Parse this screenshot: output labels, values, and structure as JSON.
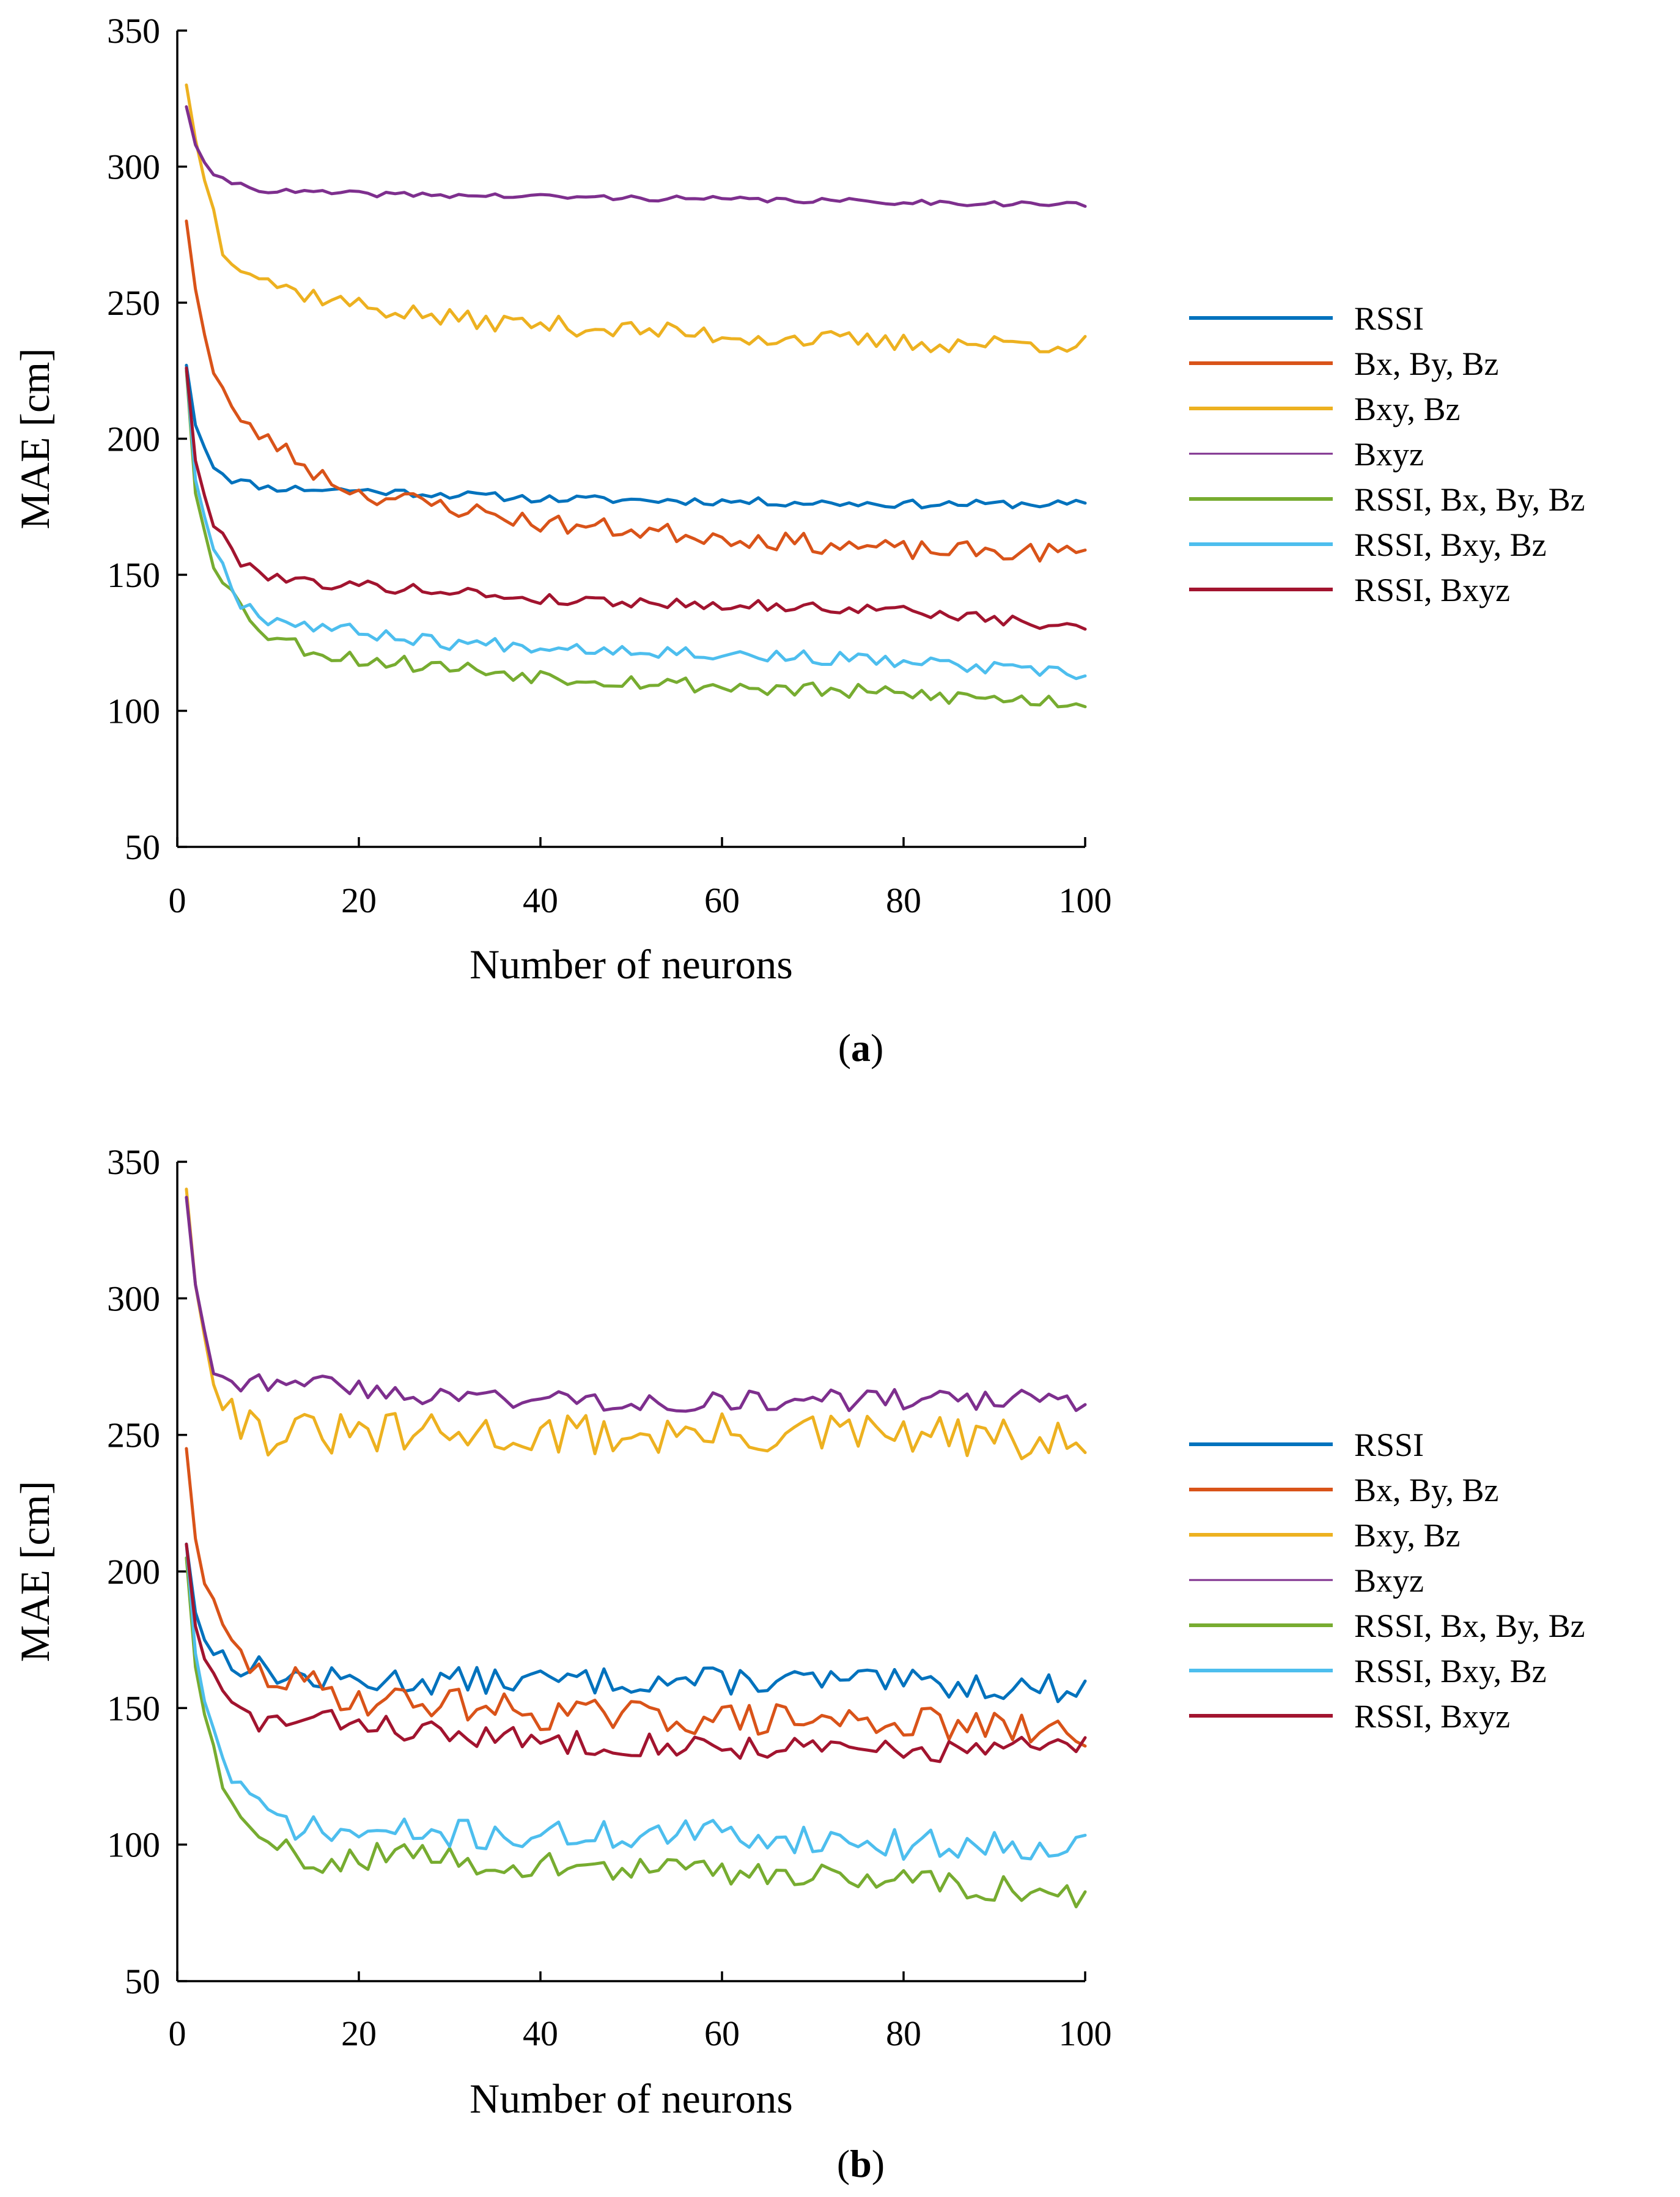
{
  "chart_data": [
    {
      "type": "line",
      "panel": "a",
      "caption_letter": "a",
      "xlabel": "Number of neurons",
      "ylabel": "MAE [cm]",
      "xlim": [
        0,
        100
      ],
      "ylim": [
        50,
        350
      ],
      "xticks": [
        0,
        20,
        40,
        60,
        80,
        100
      ],
      "yticks": [
        50,
        100,
        150,
        200,
        250,
        300,
        350
      ],
      "legend_position": "right",
      "series": [
        {
          "name": "RSSI",
          "color": "#0072BD",
          "anchors": [
            [
              1,
              227
            ],
            [
              2,
              205
            ],
            [
              4,
              190
            ],
            [
              6,
              185
            ],
            [
              10,
              182
            ],
            [
              20,
              181
            ],
            [
              40,
              178
            ],
            [
              60,
              177
            ],
            [
              80,
              176
            ],
            [
              100,
              176
            ]
          ],
          "noise": 1.5,
          "seed": 11
        },
        {
          "name": "Bx, By, Bz",
          "color": "#D95319",
          "anchors": [
            [
              1,
              280
            ],
            [
              2,
              255
            ],
            [
              4,
              225
            ],
            [
              7,
              205
            ],
            [
              10,
              200
            ],
            [
              15,
              188
            ],
            [
              20,
              180
            ],
            [
              30,
              175
            ],
            [
              40,
              169
            ],
            [
              60,
              164
            ],
            [
              80,
              159
            ],
            [
              100,
              158
            ]
          ],
          "noise": 3.5,
          "seed": 23
        },
        {
          "name": "Bxy, Bz",
          "color": "#EDB120",
          "anchors": [
            [
              1,
              330
            ],
            [
              2,
              310
            ],
            [
              5,
              270
            ],
            [
              8,
              262
            ],
            [
              12,
              255
            ],
            [
              20,
              249
            ],
            [
              30,
              244
            ],
            [
              40,
              242
            ],
            [
              60,
              238
            ],
            [
              80,
              235
            ],
            [
              100,
              235
            ]
          ],
          "noise": 3.5,
          "seed": 37
        },
        {
          "name": "Bxyz",
          "color": "#7E2F8E",
          "anchors": [
            [
              1,
              322
            ],
            [
              2,
              308
            ],
            [
              4,
              296
            ],
            [
              10,
              291
            ],
            [
              20,
              290
            ],
            [
              40,
              289
            ],
            [
              60,
              288
            ],
            [
              80,
              287
            ],
            [
              100,
              286
            ]
          ],
          "noise": 1.0,
          "seed": 41
        },
        {
          "name": "RSSI, Bx, By, Bz",
          "color": "#77AC30",
          "anchors": [
            [
              1,
              225
            ],
            [
              2,
              180
            ],
            [
              4,
              155
            ],
            [
              7,
              138
            ],
            [
              10,
              128
            ],
            [
              15,
              122
            ],
            [
              20,
              119
            ],
            [
              30,
              116
            ],
            [
              40,
              113
            ],
            [
              60,
              109
            ],
            [
              80,
              106
            ],
            [
              100,
              103
            ]
          ],
          "noise": 3.0,
          "seed": 53
        },
        {
          "name": "RSSI, Bxy, Bz",
          "color": "#4DBEEE",
          "anchors": [
            [
              1,
              226
            ],
            [
              2,
              185
            ],
            [
              4,
              160
            ],
            [
              7,
              140
            ],
            [
              10,
              134
            ],
            [
              20,
              129
            ],
            [
              30,
              125
            ],
            [
              40,
              124
            ],
            [
              60,
              121
            ],
            [
              80,
              118
            ],
            [
              100,
              113
            ]
          ],
          "noise": 2.5,
          "seed": 67
        },
        {
          "name": "RSSI, Bxyz",
          "color": "#A2142F",
          "anchors": [
            [
              1,
              226
            ],
            [
              2,
              192
            ],
            [
              4,
              168
            ],
            [
              7,
              155
            ],
            [
              10,
              150
            ],
            [
              15,
              147
            ],
            [
              20,
              146
            ],
            [
              30,
              144
            ],
            [
              40,
              141
            ],
            [
              60,
              139
            ],
            [
              80,
              137
            ],
            [
              100,
              130
            ]
          ],
          "noise": 2.0,
          "seed": 79
        }
      ]
    },
    {
      "type": "line",
      "panel": "b",
      "caption_letter": "b",
      "xlabel": "Number of neurons",
      "ylabel": "MAE [cm]",
      "xlim": [
        0,
        100
      ],
      "ylim": [
        50,
        350
      ],
      "xticks": [
        0,
        20,
        40,
        60,
        80,
        100
      ],
      "yticks": [
        50,
        100,
        150,
        200,
        250,
        300,
        350
      ],
      "legend_position": "right",
      "series": [
        {
          "name": "RSSI",
          "color": "#0072BD",
          "anchors": [
            [
              1,
              210
            ],
            [
              2,
              185
            ],
            [
              4,
              170
            ],
            [
              8,
              165
            ],
            [
              15,
              160
            ],
            [
              30,
              160
            ],
            [
              50,
              160
            ],
            [
              70,
              160
            ],
            [
              90,
              158
            ],
            [
              100,
              157
            ]
          ],
          "noise": 5.0,
          "seed": 13
        },
        {
          "name": "Bx, By, Bz",
          "color": "#D95319",
          "anchors": [
            [
              1,
              245
            ],
            [
              2,
              212
            ],
            [
              4,
              185
            ],
            [
              6,
              172
            ],
            [
              9,
              162
            ],
            [
              15,
              158
            ],
            [
              20,
              153
            ],
            [
              30,
              152
            ],
            [
              40,
              148
            ],
            [
              60,
              146
            ],
            [
              80,
              145
            ],
            [
              100,
              140
            ]
          ],
          "noise": 6.0,
          "seed": 29
        },
        {
          "name": "Bxy, Bz",
          "color": "#EDB120",
          "anchors": [
            [
              1,
              340
            ],
            [
              2,
              305
            ],
            [
              4,
              275
            ],
            [
              6,
              258
            ],
            [
              10,
              250
            ],
            [
              20,
              250
            ],
            [
              40,
              250
            ],
            [
              60,
              250
            ],
            [
              80,
              250
            ],
            [
              100,
              246
            ]
          ],
          "noise": 8.0,
          "seed": 31
        },
        {
          "name": "Bxyz",
          "color": "#7E2F8E",
          "anchors": [
            [
              1,
              337
            ],
            [
              2,
              305
            ],
            [
              4,
              275
            ],
            [
              8,
              268
            ],
            [
              12,
              272
            ],
            [
              20,
              266
            ],
            [
              40,
              263
            ],
            [
              60,
              262
            ],
            [
              80,
              263
            ],
            [
              100,
              262
            ]
          ],
          "noise": 4.0,
          "seed": 43
        },
        {
          "name": "RSSI, Bx, By, Bz",
          "color": "#77AC30",
          "anchors": [
            [
              1,
              205
            ],
            [
              2,
              165
            ],
            [
              4,
              135
            ],
            [
              6,
              112
            ],
            [
              9,
              100
            ],
            [
              15,
              94
            ],
            [
              20,
              96
            ],
            [
              30,
              95
            ],
            [
              40,
              92
            ],
            [
              60,
              90
            ],
            [
              80,
              88
            ],
            [
              100,
              80
            ]
          ],
          "noise": 5.0,
          "seed": 59
        },
        {
          "name": "RSSI, Bxy, Bz",
          "color": "#4DBEEE",
          "anchors": [
            [
              1,
              210
            ],
            [
              2,
              170
            ],
            [
              4,
              140
            ],
            [
              6,
              125
            ],
            [
              9,
              112
            ],
            [
              15,
              105
            ],
            [
              20,
              104
            ],
            [
              30,
              104
            ],
            [
              40,
              103
            ],
            [
              60,
              104
            ],
            [
              80,
              100
            ],
            [
              100,
              100
            ]
          ],
          "noise": 5.5,
          "seed": 71
        },
        {
          "name": "RSSI, Bxyz",
          "color": "#A2142F",
          "anchors": [
            [
              1,
              210
            ],
            [
              2,
              180
            ],
            [
              4,
              160
            ],
            [
              6,
              150
            ],
            [
              9,
              145
            ],
            [
              15,
              145
            ],
            [
              20,
              145
            ],
            [
              30,
              140
            ],
            [
              40,
              138
            ],
            [
              60,
              136
            ],
            [
              80,
              134
            ],
            [
              100,
              136
            ]
          ],
          "noise": 4.5,
          "seed": 83
        }
      ]
    }
  ]
}
